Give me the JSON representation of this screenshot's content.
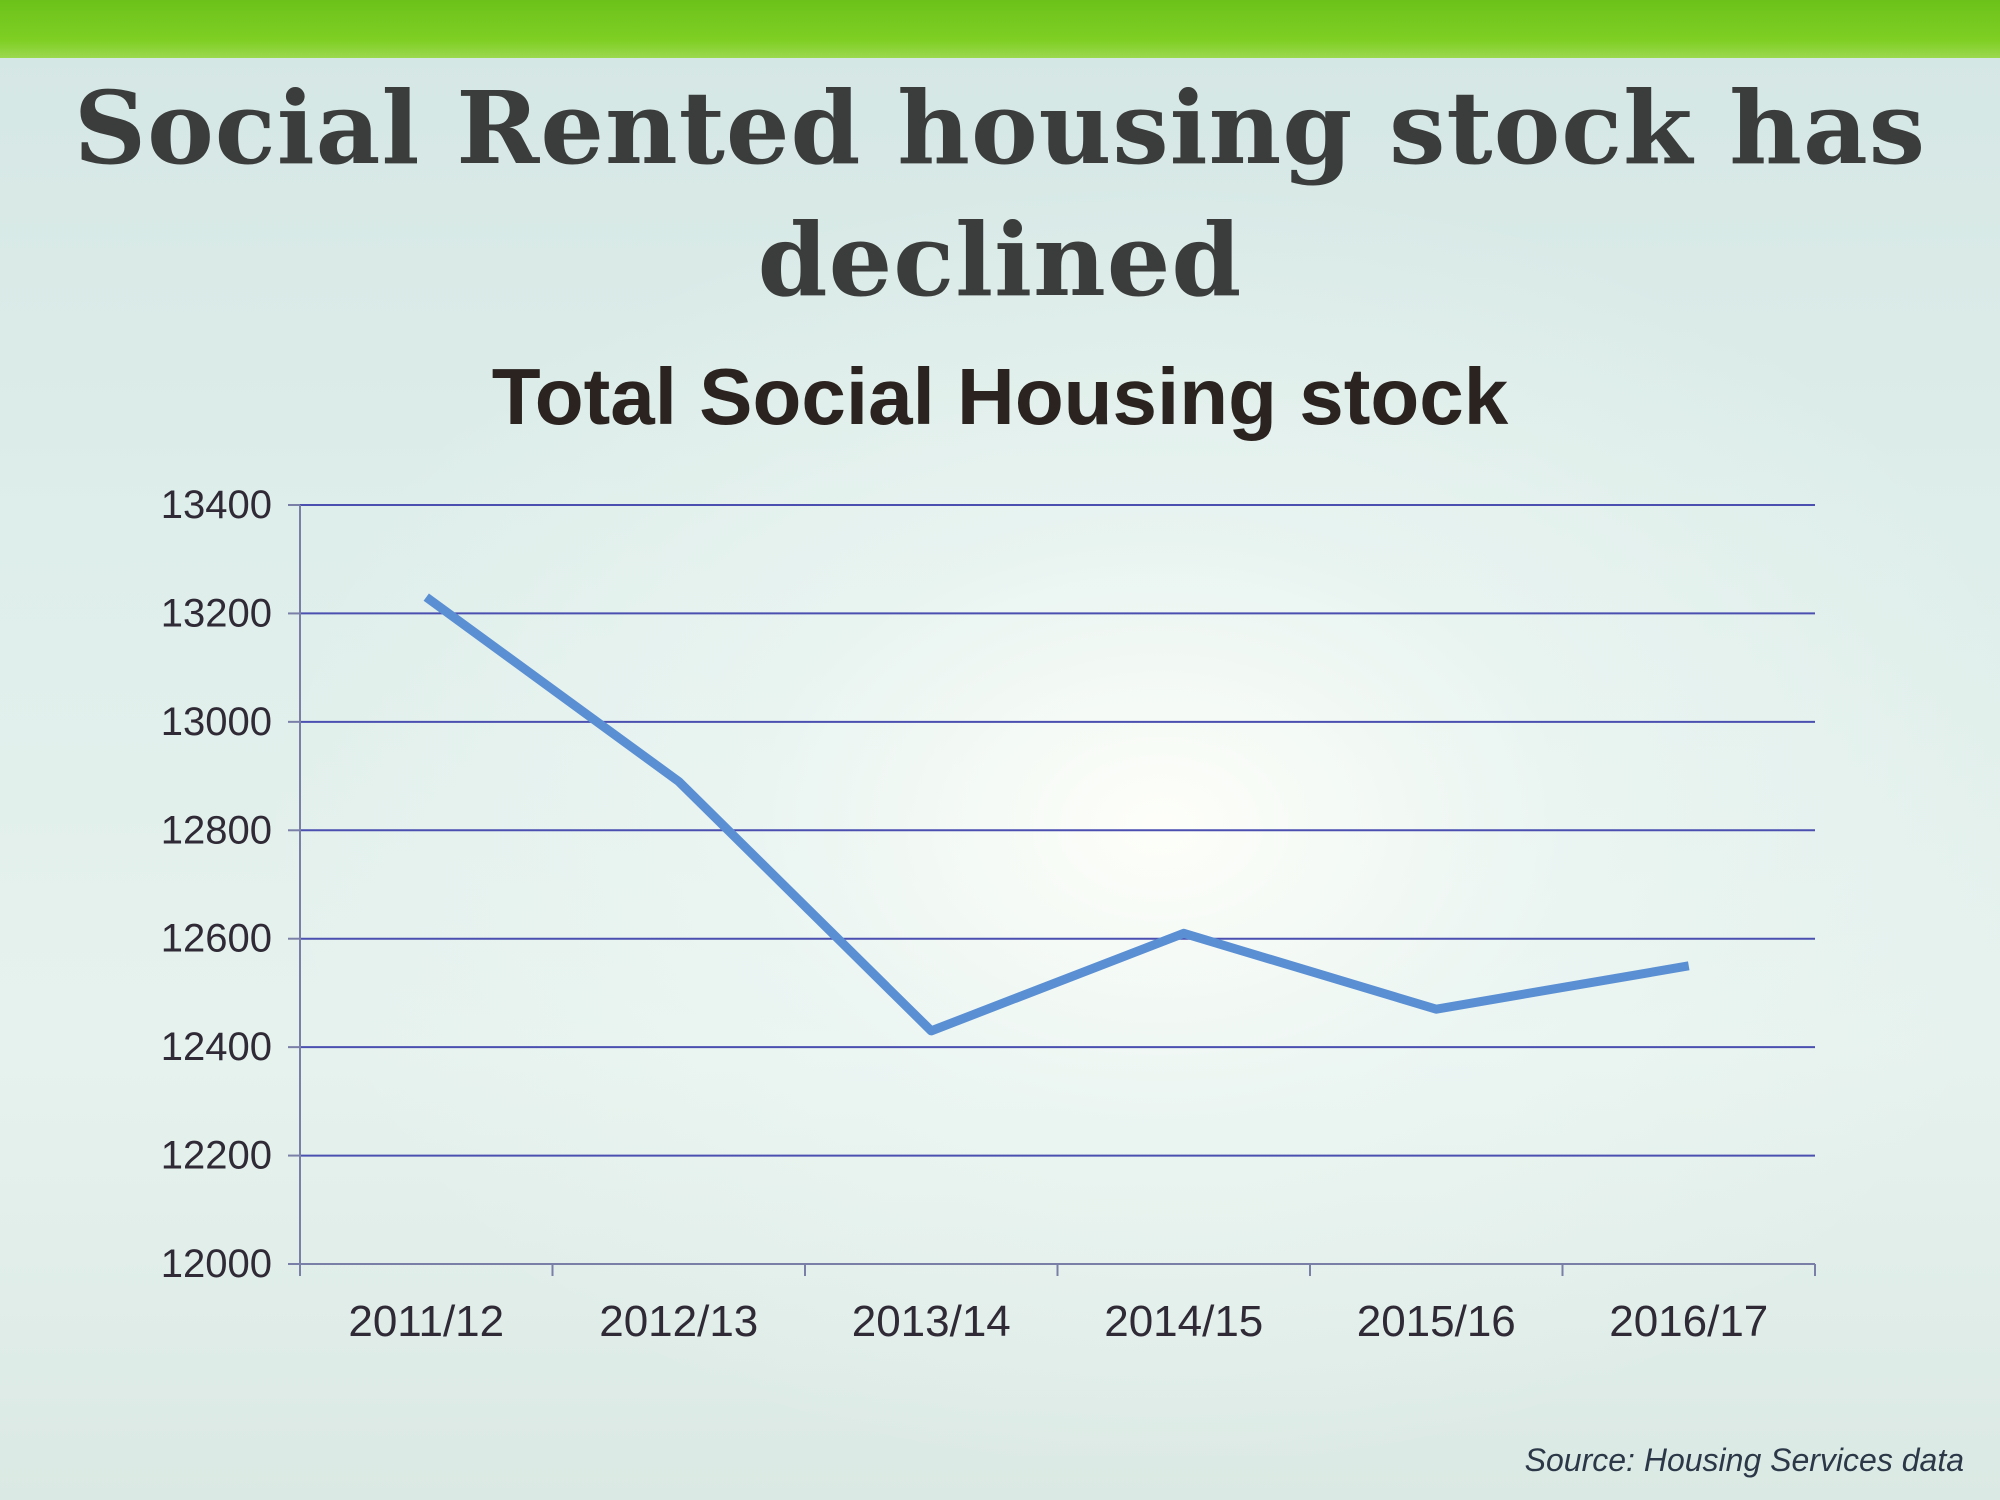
{
  "slide": {
    "title": "Social Rented housing stock has declined",
    "source": "Source: Housing Services data"
  },
  "colors": {
    "top_bar": "#74c81f",
    "title": "#3a3d3c",
    "gridline": "#4a4fb0",
    "axis": "#7a7fa8",
    "series_line": "#5b8fd3",
    "tick_label": "#2f2a35"
  },
  "chart_data": {
    "type": "line",
    "title": "Total Social Housing stock",
    "xlabel": "",
    "ylabel": "",
    "categories": [
      "2011/12",
      "2012/13",
      "2013/14",
      "2014/15",
      "2015/16",
      "2016/17"
    ],
    "series": [
      {
        "values": [
          13230,
          12890,
          12430,
          12610,
          12470,
          12550
        ]
      }
    ],
    "ylim": [
      12000,
      13400
    ],
    "yticks": [
      12000,
      12200,
      12400,
      12600,
      12800,
      13000,
      13200,
      13400
    ],
    "ytick_labels": [
      "12000",
      "12200",
      "12400",
      "12600",
      "12800",
      "13000",
      "13200",
      "13400"
    ],
    "grid": true,
    "legend": "none"
  }
}
